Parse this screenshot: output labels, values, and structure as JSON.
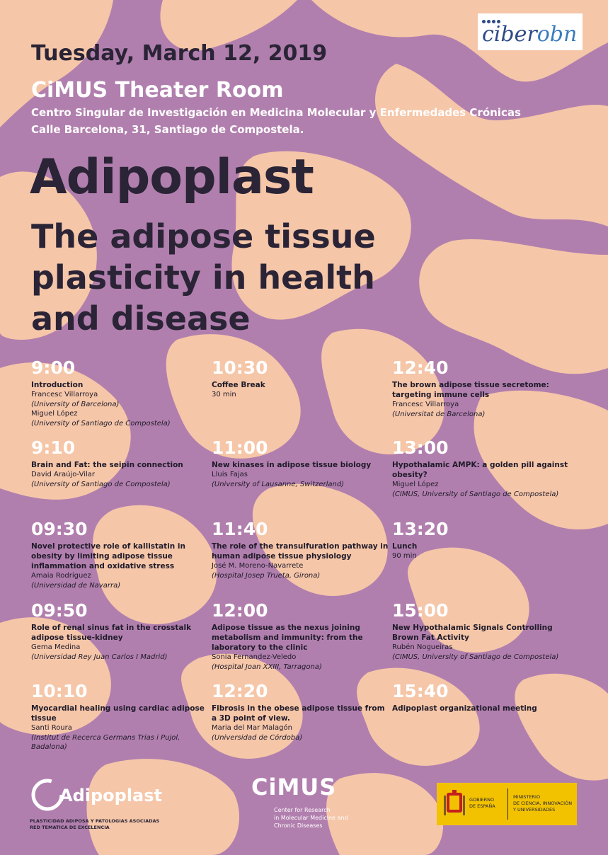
{
  "colors": {
    "background": "#b17fae",
    "network": "#f5c6a8",
    "dark": "#2a2436",
    "white": "#ffffff"
  },
  "header": {
    "date": "Tuesday, March 12, 2019",
    "venue": "CiMUS Theater Room",
    "address_line1": "Centro Singular de Investigación en Medicina Molecular y Enfermedades Crónicas",
    "address_line2": "Calle Barcelona, 31, Santiago de Compostela."
  },
  "title": {
    "main": "Adipoplast",
    "subtitle": "The adipose tissue plasticity in health and disease"
  },
  "program": {
    "col1": [
      {
        "time": "9:00",
        "title": "Introduction",
        "lines": [
          {
            "text": "Francesc Villarroya",
            "italic": false
          },
          {
            "text": "(University of Barcelona)",
            "italic": true
          },
          {
            "text": "Miguel López",
            "italic": false
          },
          {
            "text": "(University of Santiago de Compostela)",
            "italic": true
          }
        ]
      },
      {
        "time": "9:10",
        "title": "Brain and Fat: the seipin connection",
        "lines": [
          {
            "text": "David Araújo-Vilar",
            "italic": false
          },
          {
            "text": "(University of Santiago de Compostela)",
            "italic": true
          }
        ]
      },
      {
        "time": "09:30",
        "title": "Novel protective role of kallistatin in obesity by limiting adipose tissue inflammation and oxidative stress",
        "lines": [
          {
            "text": "Amaia Rodríguez",
            "italic": false
          },
          {
            "text": "(Universidad de Navarra)",
            "italic": true
          }
        ]
      },
      {
        "time": "09:50",
        "title": "Role of renal sinus fat in the crosstalk adipose tissue-kidney",
        "lines": [
          {
            "text": "Gema Medina",
            "italic": false
          },
          {
            "text": "(Universidad Rey Juan Carlos I Madrid)",
            "italic": true
          }
        ]
      },
      {
        "time": "10:10",
        "title": "Myocardial healing using cardiac adipose tissue",
        "lines": [
          {
            "text": "Santi Roura",
            "italic": false
          },
          {
            "text": "(Institut de Recerca Germans Trias i Pujol, Badalona)",
            "italic": true
          }
        ]
      }
    ],
    "col2": [
      {
        "time": "10:30",
        "title": "Coffee Break",
        "lines": [
          {
            "text": "30 min",
            "italic": false
          }
        ]
      },
      {
        "time": "11:00",
        "title": "New kinases in adipose tissue biology",
        "lines": [
          {
            "text": "Lluis Fajas",
            "italic": false
          },
          {
            "text": "(University of Lausanne, Switzerland)",
            "italic": true
          }
        ]
      },
      {
        "time": "11:40",
        "title": "The role of the transulfuration pathway in human adipose tissue physiology",
        "lines": [
          {
            "text": "José M. Moreno-Navarrete",
            "italic": false
          },
          {
            "text": "(Hospital Josep Trueta, Girona)",
            "italic": true
          }
        ]
      },
      {
        "time": "12:00",
        "title": "Adipose tissue as the nexus joining metabolism and immunity: from the laboratory to the clinic",
        "lines": [
          {
            "text": "Sonia Fernandez-Veledo",
            "italic": false
          },
          {
            "text": "(Hospital Joan XXIII, Tarragona)",
            "italic": true
          }
        ]
      },
      {
        "time": "12:20",
        "title": "Fibrosis in the obese adipose tissue from a 3D point of view.",
        "lines": [
          {
            "text": "Maria del Mar Malagón",
            "italic": false
          },
          {
            "text": "(Universidad de Córdoba)",
            "italic": true
          }
        ]
      }
    ],
    "col3": [
      {
        "time": "12:40",
        "title": "The brown adipose tissue secretome: targeting immune cells",
        "lines": [
          {
            "text": "Francesc Villarroya",
            "italic": false
          },
          {
            "text": "(Universitat de Barcelona)",
            "italic": true
          }
        ]
      },
      {
        "time": "13:00",
        "title": "Hypothalamic AMPK: a golden pill against obesity?",
        "lines": [
          {
            "text": "Miguel López",
            "italic": false
          },
          {
            "text": "(CIMUS, University of Santiago de Compostela)",
            "italic": true
          }
        ]
      },
      {
        "time": "13:20",
        "title": "Lunch",
        "lines": [
          {
            "text": "90 min",
            "italic": false
          }
        ]
      },
      {
        "time": "15:00",
        "title": "New Hypothalamic Signals Controlling Brown Fat Activity",
        "lines": [
          {
            "text": "Rubén Nogueiras",
            "italic": false
          },
          {
            "text": "(CIMUS, University of Santiago de Compostela)",
            "italic": true
          }
        ]
      },
      {
        "time": "15:40",
        "title": "Adipoplast organizational meeting",
        "lines": []
      }
    ]
  },
  "logos": {
    "ciber_prefix": "ciber",
    "ciber_suffix": "obn",
    "adipoplast_name": "Adipoplast",
    "adipoplast_tag1": "PLASTICIDAD ADIPOSA Y PATOLOGIAS ASOCIADAS",
    "adipoplast_tag2": "RED TEMATICA DE EXCELENCIA",
    "cimus_name": "CiMUS",
    "cimus_line1": "Center for Research",
    "cimus_line2": "in Molecular Medicine and",
    "cimus_line3": "Chronic Diseases",
    "gov_line1": "GOBIERNO",
    "gov_line2": "DE ESPAÑA",
    "ministry_line1": "MINISTERIO",
    "ministry_line2": "DE CIENCIA, INNOVACIÓN",
    "ministry_line3": "Y UNIVERSIDADES"
  }
}
